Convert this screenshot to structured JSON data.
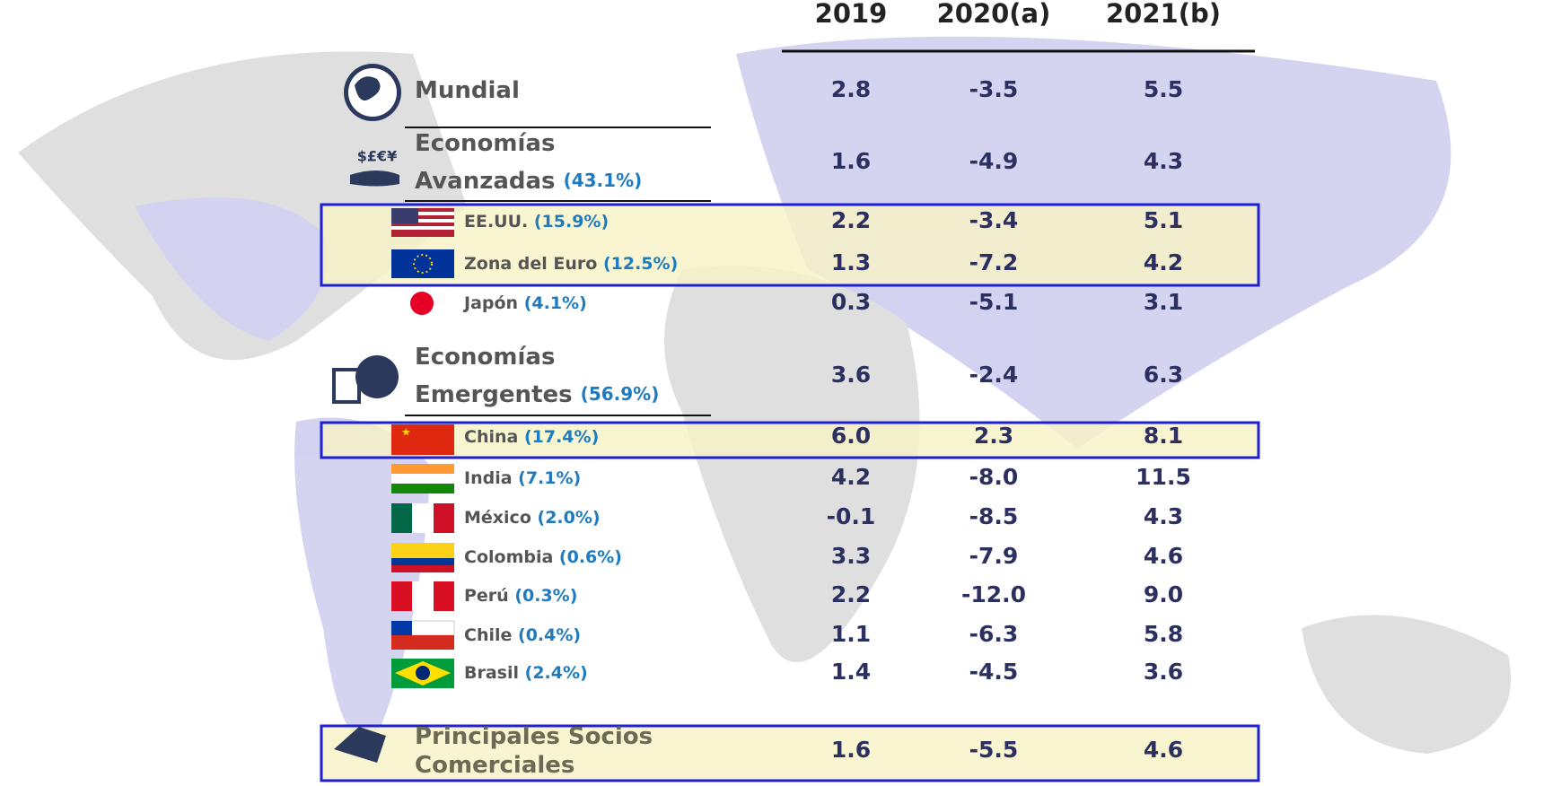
{
  "table": {
    "columns": [
      "2019",
      "2020(a)",
      "2021(b)"
    ],
    "rows": [
      {
        "name": [
          "Mundial"
        ],
        "values": [
          "2.8",
          "-3.5",
          "5.5"
        ]
      },
      {
        "name": [
          "Economías",
          "Avanzadas"
        ],
        "share": "(43.1%)",
        "values": [
          "1.6",
          "-4.9",
          "4.3"
        ]
      },
      {
        "name": [
          "EE.UU."
        ],
        "share": "(15.9%)",
        "values": [
          "2.2",
          "-3.4",
          "5.1"
        ]
      },
      {
        "name": [
          "Zona del Euro"
        ],
        "share": "(12.5%)",
        "values": [
          "1.3",
          "-7.2",
          "4.2"
        ]
      },
      {
        "name": [
          "Japón"
        ],
        "share": "(4.1%)",
        "values": [
          "0.3",
          "-5.1",
          "3.1"
        ]
      },
      {
        "name": [
          "Economías",
          "Emergentes"
        ],
        "share": "(56.9%)",
        "values": [
          "3.6",
          "-2.4",
          "6.3"
        ]
      },
      {
        "name": [
          "China"
        ],
        "share": "(17.4%)",
        "values": [
          "6.0",
          "2.3",
          "8.1"
        ]
      },
      {
        "name": [
          "India"
        ],
        "share": "(7.1%)",
        "values": [
          "4.2",
          "-8.0",
          "11.5"
        ]
      },
      {
        "name": [
          "México"
        ],
        "share": "(2.0%)",
        "values": [
          "-0.1",
          "-8.5",
          "4.3"
        ]
      },
      {
        "name": [
          "Colombia"
        ],
        "share": "(0.6%)",
        "values": [
          "3.3",
          "-7.9",
          "4.6"
        ]
      },
      {
        "name": [
          "Perú"
        ],
        "share": "(0.3%)",
        "values": [
          "2.2",
          "-12.0",
          "9.0"
        ]
      },
      {
        "name": [
          "Chile"
        ],
        "share": "(0.4%)",
        "values": [
          "1.1",
          "-6.3",
          "5.8"
        ]
      },
      {
        "name": [
          "Brasil"
        ],
        "share": "(2.4%)",
        "values": [
          "1.4",
          "-4.5",
          "3.6"
        ]
      },
      {
        "name": [
          "Principales Socios",
          "Comerciales"
        ],
        "values": [
          "1.6",
          "-5.5",
          "4.6"
        ]
      }
    ]
  }
}
